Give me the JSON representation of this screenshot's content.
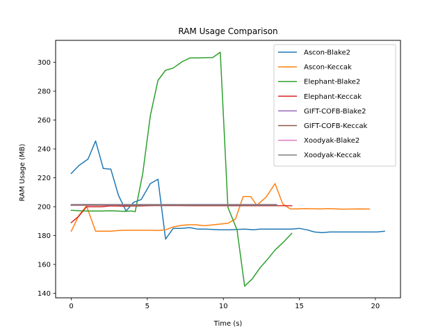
{
  "chart_data": {
    "type": "line",
    "title": "RAM Usage Comparison",
    "xlabel": "Time (s)",
    "ylabel": "RAM Usage (MB)",
    "xlim": [
      -1.03,
      21.65
    ],
    "ylim": [
      136.9,
      315.2
    ],
    "xticks": [
      0,
      5,
      10,
      15,
      20
    ],
    "yticks": [
      140,
      160,
      180,
      200,
      220,
      240,
      260,
      280,
      300
    ],
    "grid": false,
    "legend_position": "top-right",
    "series": [
      {
        "name": "Ascon-Blake2",
        "color": "#1f77b4",
        "points": [
          [
            0,
            223
          ],
          [
            0.5,
            228.5
          ],
          [
            1.1,
            233
          ],
          [
            1.6,
            245.5
          ],
          [
            2.1,
            226.5
          ],
          [
            2.6,
            226
          ],
          [
            3.1,
            208
          ],
          [
            3.6,
            197
          ],
          [
            4.1,
            203
          ],
          [
            4.6,
            205
          ],
          [
            5.2,
            216
          ],
          [
            5.7,
            219
          ],
          [
            6.2,
            177.5
          ],
          [
            6.7,
            185
          ],
          [
            7.2,
            185
          ],
          [
            7.8,
            185.5
          ],
          [
            8.3,
            184.5
          ],
          [
            8.8,
            184.5
          ],
          [
            9.8,
            184
          ],
          [
            10.4,
            184
          ],
          [
            11.4,
            184.5
          ],
          [
            12.0,
            184
          ],
          [
            12.4,
            184.5
          ],
          [
            13.5,
            184.5
          ],
          [
            14.5,
            184.5
          ],
          [
            15.0,
            185
          ],
          [
            15.5,
            184
          ],
          [
            16.0,
            182.5
          ],
          [
            16.5,
            182
          ],
          [
            17.0,
            182.5
          ],
          [
            18.1,
            182.5
          ],
          [
            18.6,
            182.5
          ],
          [
            19.1,
            182.5
          ],
          [
            20.1,
            182.5
          ],
          [
            20.6,
            183
          ]
        ]
      },
      {
        "name": "Ascon-Keccak",
        "color": "#ff7f0e",
        "points": [
          [
            0,
            183
          ],
          [
            0.5,
            194
          ],
          [
            1.0,
            200.5
          ],
          [
            1.6,
            183
          ],
          [
            2.6,
            183
          ],
          [
            3.1,
            183.5
          ],
          [
            3.6,
            183.7
          ],
          [
            4.7,
            183.7
          ],
          [
            5.2,
            183.7
          ],
          [
            5.7,
            183.5
          ],
          [
            6.2,
            184
          ],
          [
            6.7,
            186
          ],
          [
            7.2,
            187
          ],
          [
            7.7,
            187.5
          ],
          [
            8.2,
            187.5
          ],
          [
            8.7,
            186.8
          ],
          [
            9.2,
            187.3
          ],
          [
            9.8,
            188
          ],
          [
            10.3,
            188.5
          ],
          [
            10.8,
            191.5
          ],
          [
            11.3,
            207
          ],
          [
            11.8,
            207
          ],
          [
            12.2,
            201
          ],
          [
            12.8,
            206.5
          ],
          [
            13.4,
            216
          ],
          [
            13.9,
            202
          ],
          [
            14.4,
            198.5
          ],
          [
            14.9,
            198.5
          ],
          [
            15.3,
            198.7
          ],
          [
            16.4,
            198.5
          ],
          [
            16.9,
            198.7
          ],
          [
            17.9,
            198.3
          ],
          [
            18.4,
            198.4
          ],
          [
            19.0,
            198.5
          ],
          [
            19.6,
            198.4
          ]
        ]
      },
      {
        "name": "Elephant-Blake2",
        "color": "#2ca02c",
        "points": [
          [
            0,
            197.5
          ],
          [
            0.5,
            197.2
          ],
          [
            1.0,
            197
          ],
          [
            1.5,
            197
          ],
          [
            2.0,
            197
          ],
          [
            2.5,
            197.2
          ],
          [
            3.0,
            197
          ],
          [
            3.5,
            196.8
          ],
          [
            4.0,
            197
          ],
          [
            4.2,
            196.5
          ],
          [
            4.7,
            223
          ],
          [
            5.2,
            263
          ],
          [
            5.7,
            287.5
          ],
          [
            6.2,
            294.5
          ],
          [
            6.7,
            296
          ],
          [
            7.3,
            300.5
          ],
          [
            7.8,
            303
          ],
          [
            8.3,
            303
          ],
          [
            8.8,
            303.2
          ],
          [
            9.3,
            303.3
          ],
          [
            9.8,
            307
          ],
          [
            10.3,
            199.5
          ],
          [
            10.9,
            184
          ],
          [
            11.4,
            145
          ],
          [
            11.9,
            150
          ],
          [
            12.4,
            157.5
          ],
          [
            12.9,
            163.5
          ],
          [
            13.4,
            170
          ],
          [
            14.0,
            176
          ],
          [
            14.5,
            181.5
          ]
        ]
      },
      {
        "name": "Elephant-Keccak",
        "color": "#d62728",
        "points": [
          [
            0,
            189
          ],
          [
            0.5,
            193.5
          ],
          [
            1.0,
            200
          ],
          [
            1.5,
            200
          ],
          [
            2.0,
            200
          ],
          [
            2.5,
            200.5
          ],
          [
            3.0,
            200.5
          ],
          [
            3.5,
            200.3
          ],
          [
            4.0,
            200.5
          ],
          [
            4.5,
            200.5
          ],
          [
            5.0,
            200.7
          ],
          [
            5.5,
            200.8
          ],
          [
            6.0,
            200.8
          ],
          [
            7.0,
            200.8
          ],
          [
            8.0,
            200.7
          ],
          [
            9.0,
            200.7
          ],
          [
            10.0,
            200.7
          ],
          [
            11.0,
            200.7
          ],
          [
            12.0,
            200.7
          ],
          [
            13.0,
            200.7
          ],
          [
            14.0,
            200.7
          ],
          [
            14.5,
            200.7
          ]
        ]
      },
      {
        "name": "GIFT-COFB-Blake2",
        "color": "#9467bd",
        "points": [
          [
            0,
            201
          ],
          [
            1.0,
            201.3
          ],
          [
            2.0,
            201.2
          ],
          [
            3.0,
            201.1
          ],
          [
            4.0,
            201.2
          ],
          [
            5.0,
            201.3
          ],
          [
            6.0,
            201.3
          ],
          [
            7.0,
            201.3
          ],
          [
            8.0,
            201.3
          ],
          [
            9.0,
            201.3
          ],
          [
            10.0,
            201.2
          ],
          [
            11.0,
            201.2
          ],
          [
            12.0,
            201.2
          ],
          [
            13.0,
            201.2
          ],
          [
            13.5,
            201.2
          ]
        ]
      },
      {
        "name": "GIFT-COFB-Keccak",
        "color": "#8c564b",
        "points": [
          [
            0,
            201
          ],
          [
            1.0,
            201
          ],
          [
            2.0,
            201
          ],
          [
            3.0,
            201
          ],
          [
            4.0,
            200.7
          ],
          [
            5.0,
            200.8
          ],
          [
            6.0,
            200.8
          ],
          [
            7.0,
            200.8
          ],
          [
            8.0,
            200.8
          ],
          [
            9.0,
            200.8
          ],
          [
            10.0,
            200.8
          ],
          [
            11.0,
            200.8
          ],
          [
            12.0,
            200.8
          ],
          [
            13.0,
            200.8
          ],
          [
            13.5,
            200.8
          ]
        ]
      },
      {
        "name": "Xoodyak-Blake2",
        "color": "#e377c2",
        "points": [
          [
            0,
            201.3
          ],
          [
            1.0,
            201.4
          ],
          [
            2.0,
            201.4
          ],
          [
            3.0,
            201.3
          ],
          [
            4.0,
            201.4
          ],
          [
            5.0,
            201.4
          ],
          [
            6.0,
            201.4
          ],
          [
            7.0,
            201.4
          ],
          [
            8.0,
            201.4
          ],
          [
            9.0,
            201.4
          ],
          [
            10.0,
            201.4
          ],
          [
            11.0,
            201.4
          ],
          [
            12.0,
            201.4
          ],
          [
            13.0,
            201.4
          ],
          [
            13.5,
            201.4
          ]
        ]
      },
      {
        "name": "Xoodyak-Keccak",
        "color": "#7f7f7f",
        "points": [
          [
            0,
            201.5
          ],
          [
            1.0,
            201.6
          ],
          [
            2.0,
            201.5
          ],
          [
            3.0,
            201.5
          ],
          [
            4.0,
            201.5
          ],
          [
            5.0,
            201.5
          ],
          [
            6.0,
            201.5
          ],
          [
            7.0,
            201.5
          ],
          [
            8.0,
            201.5
          ],
          [
            9.0,
            201.5
          ],
          [
            10.0,
            201.5
          ],
          [
            11.0,
            201.5
          ],
          [
            12.0,
            201.5
          ],
          [
            13.0,
            201.5
          ],
          [
            13.5,
            201.5
          ]
        ]
      }
    ]
  }
}
